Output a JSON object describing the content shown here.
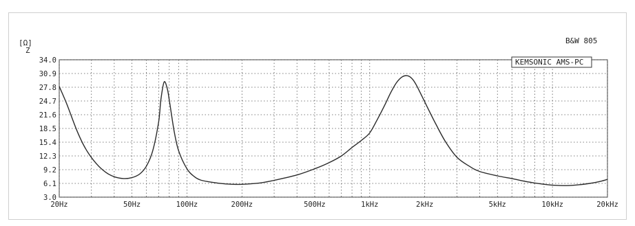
{
  "chart_data": {
    "type": "line",
    "title": "B&W 805",
    "brand_label": "KEMSONIC AMS-PC",
    "y_unit": "[Ω]",
    "ylabel": "Z",
    "x_scale": "log",
    "xlim": [
      20,
      20000
    ],
    "ylim": [
      3.0,
      34.0
    ],
    "grid": true,
    "y_ticks": [
      "34.0",
      "30.9",
      "27.8",
      "24.7",
      "21.6",
      "18.5",
      "15.4",
      "12.3",
      "9.2",
      "6.1",
      "3.0"
    ],
    "y_tick_values": [
      34.0,
      30.9,
      27.8,
      24.7,
      21.6,
      18.5,
      15.4,
      12.3,
      9.2,
      6.1,
      3.0
    ],
    "x_tick_labels": [
      "20Hz",
      "50Hz",
      "100Hz",
      "200Hz",
      "500Hz",
      "1kHz",
      "2kHz",
      "5kHz",
      "10kHz",
      "20kHz"
    ],
    "x_tick_values": [
      20,
      50,
      100,
      200,
      500,
      1000,
      2000,
      5000,
      10000,
      20000
    ],
    "series": [
      {
        "x": [
          20,
          22,
          25,
          28,
          32,
          36,
          40,
          45,
          50,
          55,
          60,
          65,
          70,
          72,
          75,
          78,
          80,
          85,
          90,
          100,
          110,
          120,
          140,
          160,
          180,
          200,
          250,
          300,
          400,
          500,
          600,
          700,
          800,
          900,
          1000,
          1100,
          1200,
          1300,
          1400,
          1500,
          1600,
          1700,
          1800,
          2000,
          2300,
          2600,
          3000,
          3500,
          4000,
          5000,
          6000,
          7000,
          8000,
          9000,
          10000,
          12000,
          14000,
          16000,
          18000,
          20000
        ],
        "y": [
          28.0,
          24.0,
          18.0,
          13.8,
          10.5,
          8.6,
          7.6,
          7.2,
          7.4,
          8.2,
          10.0,
          13.5,
          20.0,
          25.0,
          29.0,
          27.5,
          25.0,
          18.0,
          13.5,
          9.4,
          7.6,
          6.8,
          6.3,
          6.0,
          5.9,
          5.9,
          6.2,
          6.8,
          8.0,
          9.4,
          10.8,
          12.3,
          14.2,
          15.8,
          17.5,
          20.5,
          23.5,
          26.5,
          28.8,
          30.1,
          30.4,
          29.8,
          28.3,
          24.5,
          19.5,
          15.5,
          12.0,
          10.0,
          8.8,
          7.8,
          7.2,
          6.6,
          6.2,
          5.9,
          5.7,
          5.6,
          5.8,
          6.1,
          6.5,
          7.0
        ]
      }
    ]
  }
}
